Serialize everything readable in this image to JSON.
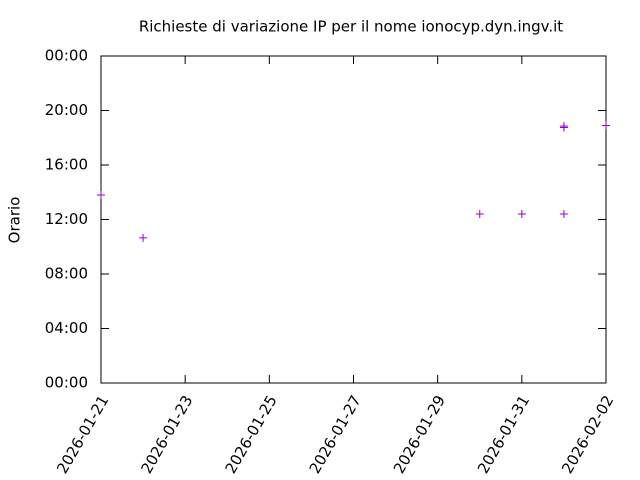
{
  "chart_data": {
    "type": "scatter",
    "title": "Richieste di variazione IP per il nome ionocyp.dyn.ingv.it",
    "y_label": "Orario",
    "x": [
      "2026-01-21",
      "2026-01-22",
      "2026-01-30",
      "2026-01-31",
      "2026-02-01",
      "2026-02-01",
      "2026-02-01",
      "2026-02-02"
    ],
    "series": [
      {
        "color": "#9400d3",
        "values": [
          13.8,
          10.65,
          12.4,
          12.4,
          12.4,
          18.75,
          18.85,
          18.9
        ]
      }
    ],
    "xlim": [
      "2026-01-21",
      "2026-02-02"
    ],
    "xticks": [
      "2026-01-21",
      "2026-01-23",
      "2026-01-25",
      "2026-01-27",
      "2026-01-29",
      "2026-01-31",
      "2026-02-02"
    ],
    "ylim": [
      0,
      24
    ],
    "yticks": [
      {
        "value": 0,
        "label": "00:00"
      },
      {
        "value": 4,
        "label": "04:00"
      },
      {
        "value": 8,
        "label": "08:00"
      },
      {
        "value": 12,
        "label": "12:00"
      },
      {
        "value": 16,
        "label": "16:00"
      },
      {
        "value": 20,
        "label": "20:00"
      },
      {
        "value": 24,
        "label": "00:00"
      }
    ],
    "grid": false
  }
}
